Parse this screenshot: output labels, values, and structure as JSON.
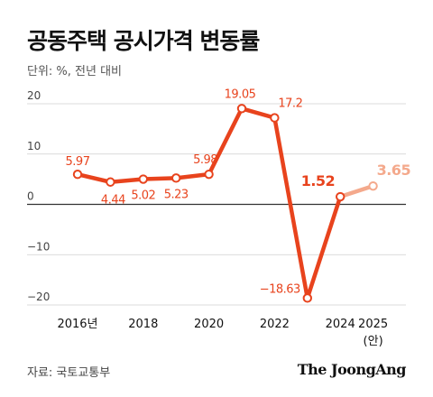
{
  "header": {
    "title": "공동주택 공시가격 변동률",
    "unit": "단위: %, 전년 대비"
  },
  "footer": {
    "source": "자료: 국토교통부",
    "brand": "The JoongAng"
  },
  "colors": {
    "line": "#e8431d",
    "projection": "#f4a98c",
    "grid": "#cfcfcf",
    "zero_line": "#333333"
  },
  "chart_data": {
    "type": "line",
    "title": "공동주택 공시가격 변동률",
    "ylabel": "단위: %, 전년 대비",
    "ylim": [
      -20,
      20
    ],
    "y_ticks": [
      "20",
      "10",
      "0",
      "−10",
      "−20"
    ],
    "y_tick_values": [
      20,
      10,
      0,
      -10,
      -20
    ],
    "x": [
      2016,
      2017,
      2018,
      2019,
      2020,
      2021,
      2022,
      2023,
      2024,
      2025
    ],
    "x_tick_labels": [
      {
        "year": 2016,
        "label": "2016년",
        "sub": ""
      },
      {
        "year": 2018,
        "label": "2018",
        "sub": ""
      },
      {
        "year": 2020,
        "label": "2020",
        "sub": ""
      },
      {
        "year": 2022,
        "label": "2022",
        "sub": ""
      },
      {
        "year": 2024,
        "label": "2024",
        "sub": ""
      },
      {
        "year": 2025,
        "label": "2025",
        "sub": "(안)"
      }
    ],
    "series": [
      {
        "values": [
          5.97,
          4.44,
          5.02,
          5.23,
          5.98,
          19.05,
          17.2,
          -18.63,
          1.52,
          3.65
        ],
        "labels": [
          "5.97",
          "4.44",
          "5.02",
          "5.23",
          "5.98",
          "19.05",
          "17.2",
          "−18.63",
          "1.52",
          "3.65"
        ],
        "projected_from_index": 8
      }
    ],
    "grid": true
  }
}
